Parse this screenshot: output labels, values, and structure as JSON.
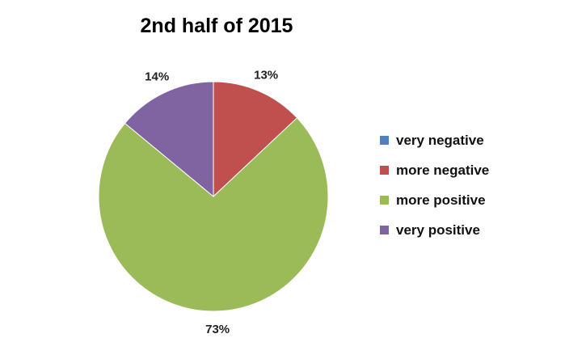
{
  "chart_data": {
    "type": "pie",
    "title": "2nd half of 2015",
    "categories": [
      "very negative",
      "more negative",
      "more positive",
      "very positive"
    ],
    "values": [
      0,
      13,
      73,
      14
    ],
    "labels": [
      "",
      "13%",
      "73%",
      "14%"
    ],
    "colors": [
      "#4F81BD",
      "#C0504D",
      "#9BBB59",
      "#8064A2"
    ],
    "legend_position": "right"
  }
}
